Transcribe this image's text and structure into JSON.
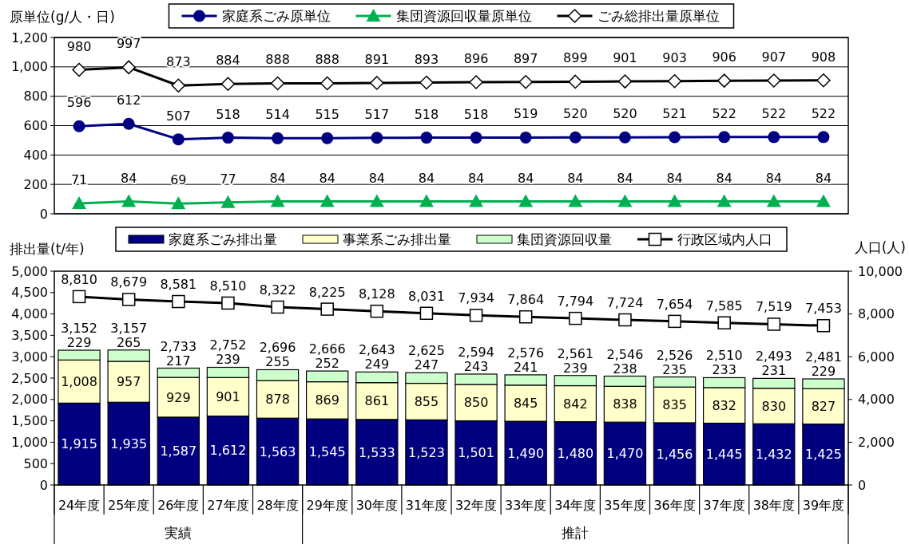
{
  "chart_data": [
    {
      "type": "line",
      "ylabel": "原単位(g/人・日)",
      "categories": [
        null,
        null,
        null,
        null,
        null,
        null,
        null,
        null,
        null,
        null,
        null,
        null,
        null,
        null,
        null,
        null
      ],
      "series": [
        {
          "name": "家庭系ごみ原単位",
          "color": "#000080",
          "marker": "circle",
          "values": [
            596,
            612,
            507,
            518,
            514,
            515,
            517,
            518,
            518,
            519,
            520,
            520,
            521,
            522,
            522,
            522
          ]
        },
        {
          "name": "集団資源回収量原単位",
          "color": "#00b050",
          "marker": "triangle",
          "values": [
            71,
            84,
            69,
            77,
            84,
            84,
            84,
            84,
            84,
            84,
            84,
            84,
            84,
            84,
            84,
            84
          ]
        },
        {
          "name": "ごみ総排出量原単位",
          "color": "#000000",
          "marker": "diamond",
          "values": [
            980,
            997,
            873,
            884,
            888,
            888,
            891,
            893,
            896,
            897,
            899,
            901,
            903,
            906,
            907,
            908
          ]
        }
      ],
      "ylim": [
        0,
        1200
      ],
      "yticks": [
        0,
        200,
        400,
        600,
        800,
        {
          "value": 1000,
          "label": "1,000"
        },
        {
          "value": 1200,
          "label": "1,200"
        }
      ],
      "grid": "y",
      "legend": "top",
      "data_labels": true,
      "tick_labels": "y"
    },
    {
      "type": "bar",
      "stacked": true,
      "ylabel": "排出量(t/年)",
      "y2label": "人口(人)",
      "categories": [
        "24年度",
        "25年度",
        "26年度",
        "27年度",
        "28年度",
        "29年度",
        "30年度",
        "31年度",
        "32年度",
        "33年度",
        "34年度",
        "35年度",
        "36年度",
        "37年度",
        "38年度",
        "39年度"
      ],
      "series": [
        {
          "name": "家庭系ごみ排出量",
          "color": "#000080",
          "values": [
            1915,
            1935,
            1587,
            1612,
            1563,
            1545,
            1533,
            1523,
            1501,
            1490,
            1480,
            1470,
            1456,
            1445,
            1432,
            1425
          ],
          "value_labels": [
            "1,915",
            "1,935",
            "1,587",
            "1,612",
            "1,563",
            "1,545",
            "1,533",
            "1,523",
            "1,501",
            "1,490",
            "1,480",
            "1,470",
            "1,456",
            "1,445",
            "1,432",
            "1,425"
          ]
        },
        {
          "name": "事業系ごみ排出量",
          "color": "#ffffcc",
          "values": [
            1008,
            957,
            929,
            901,
            878,
            869,
            861,
            855,
            850,
            845,
            842,
            838,
            835,
            832,
            830,
            827
          ],
          "value_labels": [
            "1,008",
            "957",
            "929",
            "901",
            "878",
            "869",
            "861",
            "855",
            "850",
            "845",
            "842",
            "838",
            "835",
            "832",
            "830",
            "827"
          ]
        },
        {
          "name": "集団資源回収量",
          "color": "#ccffcc",
          "values": [
            229,
            265,
            217,
            239,
            255,
            252,
            249,
            247,
            243,
            241,
            239,
            238,
            235,
            233,
            231,
            229
          ],
          "value_labels": [
            "229",
            "265",
            "217",
            "239",
            "255",
            "252",
            "249",
            "247",
            "243",
            "241",
            "239",
            "238",
            "235",
            "233",
            "231",
            "229"
          ]
        },
        {
          "name": "行政区域内人口",
          "type": "line",
          "axis": "y2",
          "color": "#000000",
          "marker": "square",
          "values": [
            8810,
            8679,
            8581,
            8510,
            8322,
            8225,
            8128,
            8031,
            7934,
            7864,
            7794,
            7724,
            7654,
            7585,
            7519,
            7453
          ],
          "value_labels": [
            "8,810",
            "8,679",
            "8,581",
            "8,510",
            "8,322",
            "8,225",
            "8,128",
            "8,031",
            "7,934",
            "7,864",
            "7,794",
            "7,724",
            "7,654",
            "7,585",
            "7,519",
            "7,453"
          ]
        }
      ],
      "totals": [
        "3,152",
        "3,157",
        "2,733",
        "2,752",
        "2,696",
        "2,666",
        "2,643",
        "2,625",
        "2,594",
        "2,576",
        "2,561",
        "2,546",
        "2,526",
        "2,510",
        "2,493",
        "2,481"
      ],
      "ylim": [
        0,
        5000
      ],
      "yticks": [
        0,
        500,
        {
          "value": 1000,
          "label": "1,000"
        },
        {
          "value": 1500,
          "label": "1,500"
        },
        {
          "value": 2000,
          "label": "2,000"
        },
        {
          "value": 2500,
          "label": "2,500"
        },
        {
          "value": 3000,
          "label": "3,000"
        },
        {
          "value": 3500,
          "label": "3,500"
        },
        {
          "value": 4000,
          "label": "4,000"
        },
        {
          "value": 4500,
          "label": "4,500"
        },
        {
          "value": 5000,
          "label": "5,000"
        }
      ],
      "y2lim": [
        0,
        10000
      ],
      "y2ticks": [
        0,
        {
          "value": 2000,
          "label": "2,000"
        },
        {
          "value": 4000,
          "label": "4,000"
        },
        {
          "value": 6000,
          "label": "6,000"
        },
        {
          "value": 8000,
          "label": "8,000"
        },
        {
          "value": 10000,
          "label": "10,000"
        }
      ],
      "legend": "top",
      "annotations": [
        "実績",
        "推計"
      ]
    }
  ]
}
